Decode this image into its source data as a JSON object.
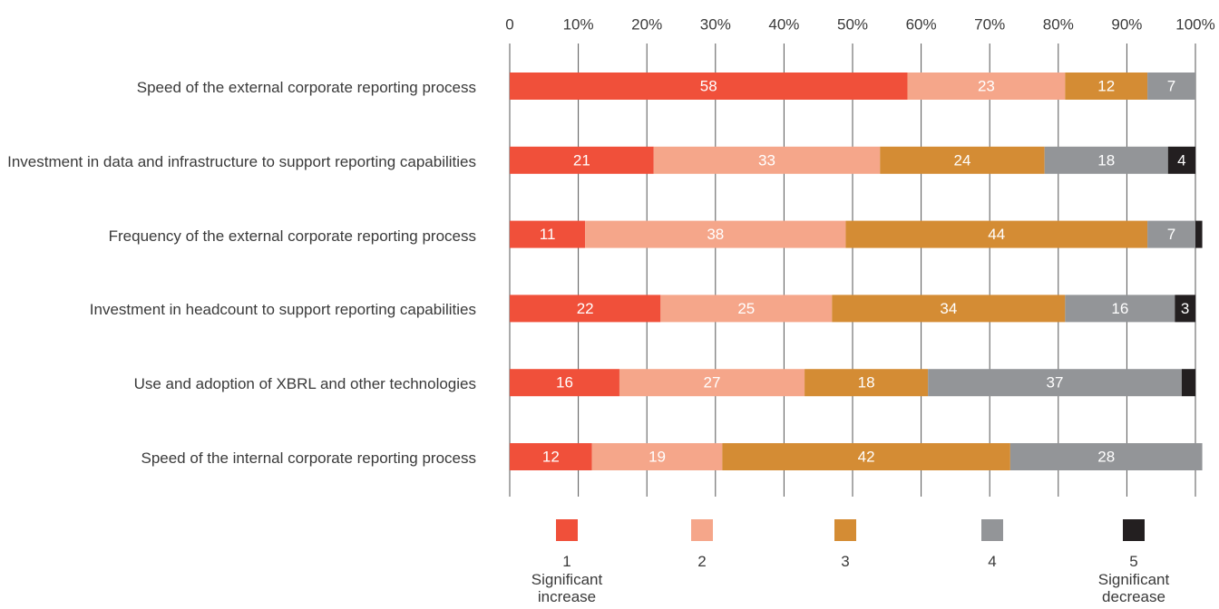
{
  "chart_data": {
    "type": "stacked-barh",
    "categories": [
      "Speed of the external corporate reporting process",
      "Investment in data and infrastructure to support reporting capabilities",
      "Frequency of the external corporate reporting process",
      "Investment in headcount to support reporting capabilities",
      "Use and adoption of XBRL and other technologies",
      "Speed of the internal corporate reporting process"
    ],
    "series": [
      {
        "name": "1",
        "description": "Significant increase",
        "color": "#f0503a",
        "values": [
          58,
          21,
          11,
          22,
          16,
          12
        ]
      },
      {
        "name": "2",
        "color": "#f5a68a",
        "values": [
          23,
          33,
          38,
          25,
          27,
          19
        ]
      },
      {
        "name": "3",
        "color": "#d48c34",
        "values": [
          12,
          24,
          44,
          34,
          18,
          42
        ]
      },
      {
        "name": "4",
        "color": "#939598",
        "values": [
          7,
          18,
          7,
          16,
          37,
          28
        ]
      },
      {
        "name": "5",
        "description": "Significant decrease",
        "color": "#231f20",
        "values": [
          0,
          4,
          1,
          3,
          2,
          0
        ]
      }
    ],
    "xlim": [
      0,
      100
    ],
    "xticks": [
      0,
      {
        "value": 10,
        "label": "10%"
      },
      {
        "value": 20,
        "label": "20%"
      },
      {
        "value": 30,
        "label": "30%"
      },
      {
        "value": 40,
        "label": "40%"
      },
      {
        "value": 50,
        "label": "50%"
      },
      {
        "value": 60,
        "label": "60%"
      },
      {
        "value": 70,
        "label": "70%"
      },
      {
        "value": 80,
        "label": "80%"
      },
      {
        "value": 90,
        "label": "90%"
      },
      {
        "value": 100,
        "label": "100%"
      }
    ],
    "grid": true
  }
}
